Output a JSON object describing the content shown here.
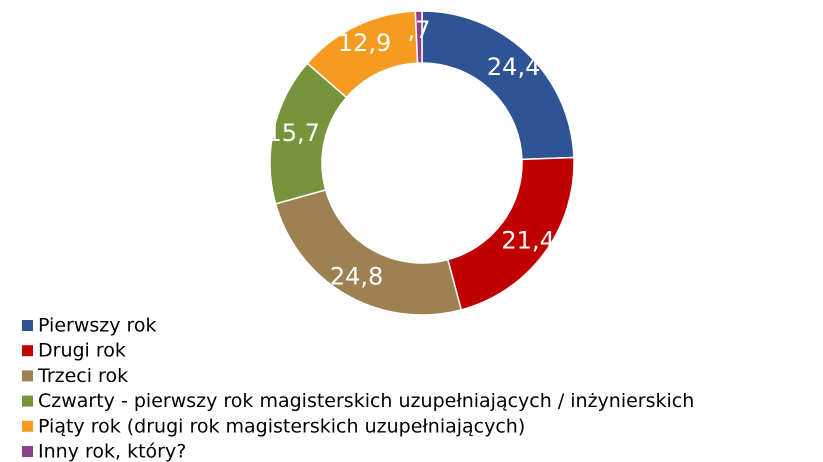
{
  "chart_data": {
    "type": "donut",
    "categories": [
      "Pierwszy rok",
      "Drugi rok",
      "Trzeci rok",
      "Czwarty - pierwszy rok magisterskich uzupełniających / inżynierskich",
      "Piąty rok (drugi rok magisterskich uzupełniających)",
      "Inny rok, który?"
    ],
    "values": [
      24.4,
      21.4,
      24.8,
      15.7,
      12.9,
      0.7
    ],
    "value_labels": [
      "24,4",
      "21,4",
      "24,8",
      "15,7",
      "12,9",
      ",7"
    ],
    "colors": [
      "#2f5496",
      "#c00000",
      "#9e8152",
      "#77933c",
      "#f79a20",
      "#8e3f8e"
    ],
    "legend": "bottom-left"
  }
}
